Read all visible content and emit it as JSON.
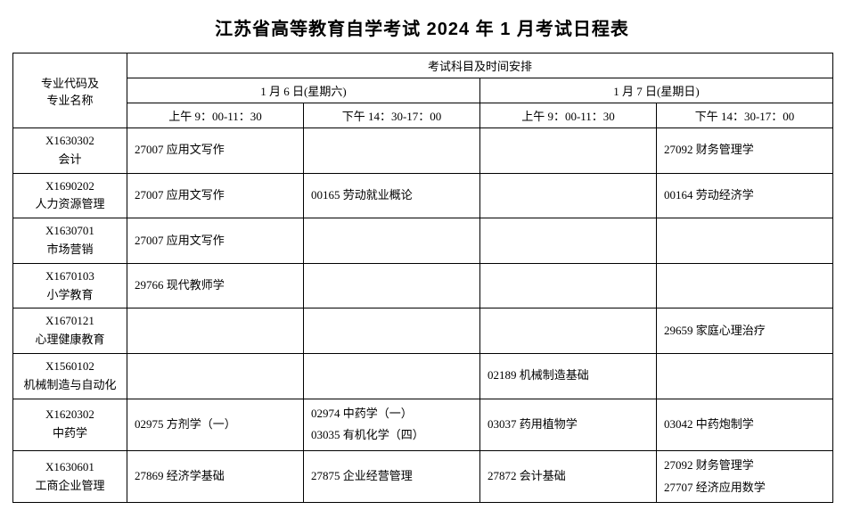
{
  "title": "江苏省高等教育自学考试 2024 年 1 月考试日程表",
  "header": {
    "major_col": "专业代码及\n专业名称",
    "top": "考试科目及时间安排",
    "day1": "1 月 6 日(星期六)",
    "day2": "1 月 7 日(星期日)",
    "s1": "上午 9：00-11：30",
    "s2": "下午 14：30-17：00",
    "s3": "上午 9：00-11：30",
    "s4": "下午 14：30-17：00"
  },
  "rows": [
    {
      "code": "X1630302",
      "name": "会计",
      "c1": [
        "27007 应用文写作"
      ],
      "c2": [],
      "c3": [],
      "c4": [
        "27092 财务管理学"
      ]
    },
    {
      "code": "X1690202",
      "name": "人力资源管理",
      "c1": [
        "27007 应用文写作"
      ],
      "c2": [
        "00165 劳动就业概论"
      ],
      "c3": [],
      "c4": [
        "00164 劳动经济学"
      ]
    },
    {
      "code": "X1630701",
      "name": "市场营销",
      "c1": [
        "27007 应用文写作"
      ],
      "c2": [],
      "c3": [],
      "c4": []
    },
    {
      "code": "X1670103",
      "name": "小学教育",
      "c1": [
        "29766 现代教师学"
      ],
      "c2": [],
      "c3": [],
      "c4": []
    },
    {
      "code": "X1670121",
      "name": "心理健康教育",
      "c1": [],
      "c2": [],
      "c3": [],
      "c4": [
        "29659 家庭心理治疗"
      ]
    },
    {
      "code": "X1560102",
      "name": "机械制造与自动化",
      "c1": [],
      "c2": [],
      "c3": [
        "02189 机械制造基础"
      ],
      "c4": []
    },
    {
      "code": "X1620302",
      "name": "中药学",
      "c1": [
        "02975 方剂学（一）"
      ],
      "c2": [
        "02974 中药学（一）",
        "03035 有机化学（四）"
      ],
      "c3": [
        "03037 药用植物学"
      ],
      "c4": [
        "03042 中药炮制学"
      ]
    },
    {
      "code": "X1630601",
      "name": "工商企业管理",
      "c1": [
        "27869 经济学基础"
      ],
      "c2": [
        "27875 企业经营管理"
      ],
      "c3": [
        "27872 会计基础"
      ],
      "c4": [
        "27092 财务管理学",
        "27707 经济应用数学"
      ]
    }
  ]
}
